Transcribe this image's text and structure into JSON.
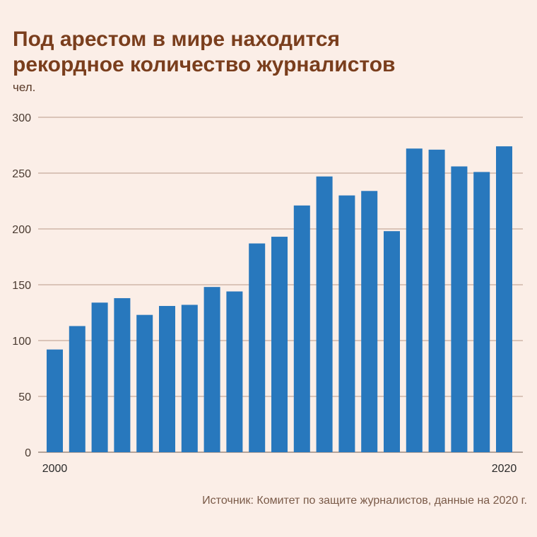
{
  "title_line1": "Под арестом в мире находится",
  "title_line2": "рекордное количество журналистов",
  "unit": "чел.",
  "source": "Источник: Комитет по защите журналистов, данные на 2020 г.",
  "colors": {
    "bar": "#2878bd",
    "title": "#7a3e1d",
    "grid": "#b89a88",
    "background": "#fbeee7"
  },
  "chart_data": {
    "type": "bar",
    "title": "Под арестом в мире находится рекордное количество журналистов",
    "ylabel": "чел.",
    "xlabel": "",
    "ylim": [
      0,
      300
    ],
    "yticks": [
      0,
      50,
      100,
      150,
      200,
      250,
      300
    ],
    "x_tick_labels": [
      "2000",
      "2020"
    ],
    "categories": [
      "2000",
      "2001",
      "2002",
      "2003",
      "2004",
      "2005",
      "2006",
      "2007",
      "2008",
      "2009",
      "2010",
      "2011",
      "2012",
      "2013",
      "2014",
      "2015",
      "2016",
      "2017",
      "2018",
      "2019",
      "2020"
    ],
    "values": [
      92,
      113,
      134,
      138,
      123,
      131,
      132,
      148,
      144,
      187,
      193,
      221,
      247,
      230,
      234,
      198,
      272,
      271,
      256,
      251,
      274
    ],
    "grid": true
  }
}
